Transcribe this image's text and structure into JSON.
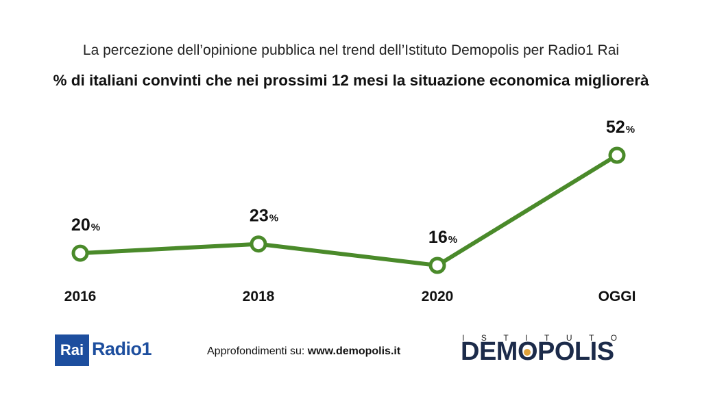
{
  "header": {
    "subtitle": "La percezione dell’opinione pubblica nel trend dell’Istituto Demopolis per Radio1 Rai",
    "title": "% di italiani convinti che nei prossimi 12 mesi la situazione economica migliorerà"
  },
  "chart_data": {
    "type": "line",
    "categories": [
      "2016",
      "2018",
      "2020",
      "OGGI"
    ],
    "values": [
      20,
      23,
      16,
      52
    ],
    "value_suffix": "%",
    "line_color": "#4a8a2a",
    "marker": "hollow-circle",
    "grid": false,
    "legend": "none"
  },
  "footer": {
    "prefix": "Approfondimenti su: ",
    "url": "www.demopolis.it",
    "rai_logo": "Rai",
    "radio_logo": "Radio1",
    "demopolis_top": "ISTITUTO",
    "demopolis_logo": "DEMOPOLIS"
  }
}
